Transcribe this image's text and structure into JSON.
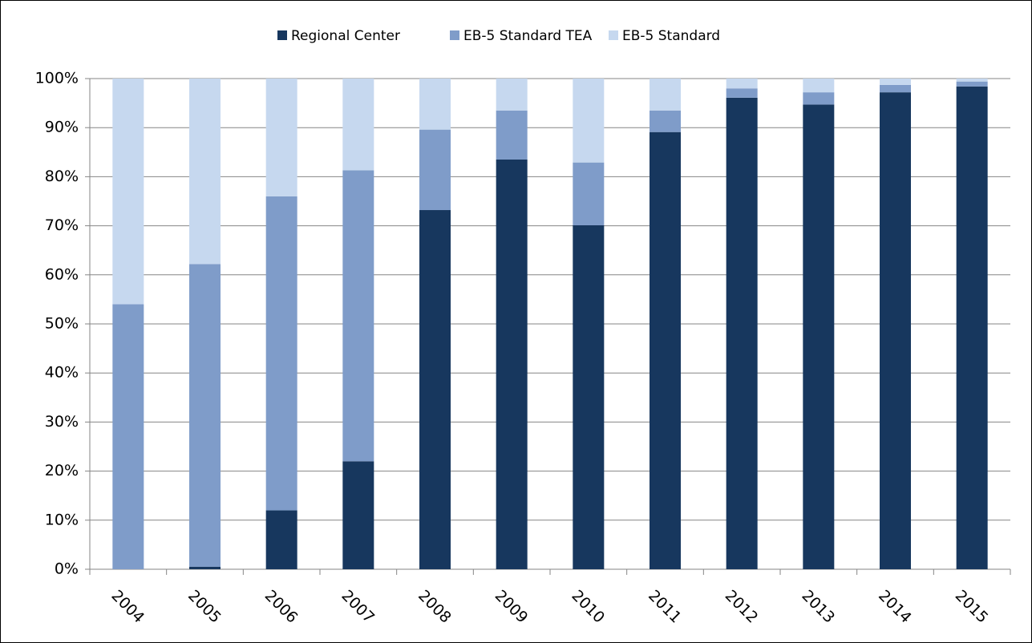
{
  "chart_data": {
    "type": "stacked-bar",
    "categories": [
      "2004",
      "2005",
      "2006",
      "2007",
      "2008",
      "2009",
      "2010",
      "2011",
      "2012",
      "2013",
      "2014",
      "2015"
    ],
    "series": [
      {
        "name": "Regional Center",
        "color": "#17375e",
        "values": [
          0,
          0.5,
          12,
          22,
          73.2,
          83.5,
          70.1,
          89.1,
          96.1,
          94.7,
          97.2,
          98.4
        ]
      },
      {
        "name": "EB-5 Standard TEA",
        "color": "#7f9cc9",
        "values": [
          54,
          61.7,
          64,
          59.3,
          16.4,
          10,
          12.8,
          4.4,
          1.9,
          2.5,
          1.5,
          1.0
        ]
      },
      {
        "name": "EB-5 Standard",
        "color": "#c6d8ef",
        "values": [
          46,
          37.8,
          24,
          18.7,
          10.4,
          6.5,
          17.1,
          6.5,
          2.0,
          2.8,
          1.3,
          0.6
        ]
      }
    ],
    "ylim": [
      0,
      100
    ],
    "yticks": [
      {
        "value": 0,
        "label": "0%"
      },
      {
        "value": 10,
        "label": "10%"
      },
      {
        "value": 20,
        "label": "20%"
      },
      {
        "value": 30,
        "label": "30%"
      },
      {
        "value": 40,
        "label": "40%"
      },
      {
        "value": 50,
        "label": "50%"
      },
      {
        "value": 60,
        "label": "60%"
      },
      {
        "value": 70,
        "label": "70%"
      },
      {
        "value": 80,
        "label": "80%"
      },
      {
        "value": 90,
        "label": "90%"
      },
      {
        "value": 100,
        "label": "100%"
      }
    ],
    "grid": true,
    "legend": "top"
  }
}
